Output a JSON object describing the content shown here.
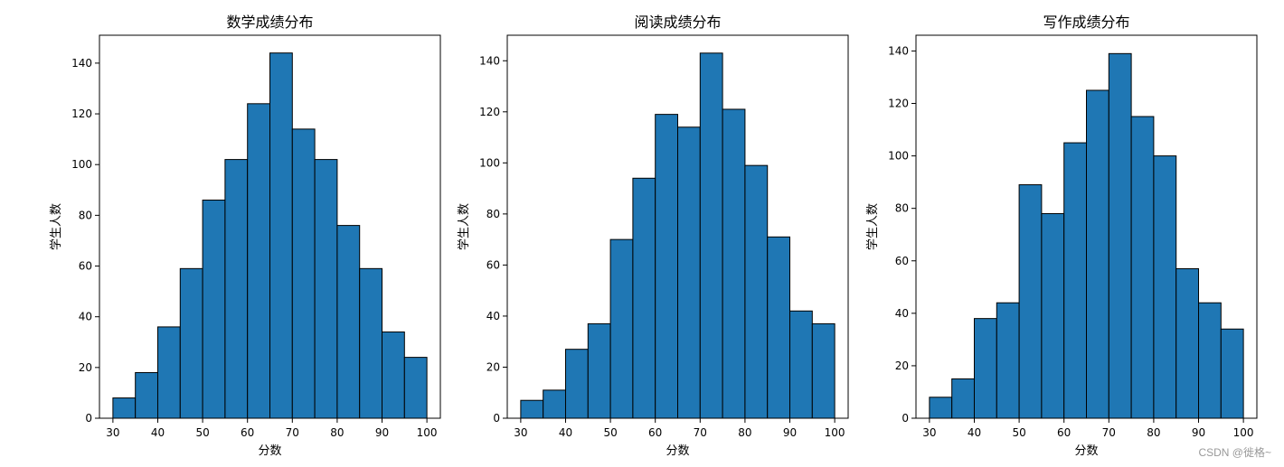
{
  "chart_data": [
    {
      "type": "bar",
      "title": "数学成绩分布",
      "xlabel": "分数",
      "ylabel": "学生人数",
      "categories": [
        "30-35",
        "35-40",
        "40-45",
        "45-50",
        "50-55",
        "55-60",
        "60-65",
        "65-70",
        "70-75",
        "75-80",
        "80-85",
        "85-90",
        "90-95",
        "95-100"
      ],
      "bin_edges": [
        30,
        35,
        40,
        45,
        50,
        55,
        60,
        65,
        70,
        75,
        80,
        85,
        90,
        95,
        100
      ],
      "values": [
        8,
        18,
        36,
        59,
        86,
        102,
        124,
        144,
        114,
        102,
        76,
        59,
        34,
        24
      ],
      "xlim": [
        27,
        103
      ],
      "ylim": [
        0,
        151
      ],
      "xticks": [
        "30",
        "40",
        "50",
        "60",
        "70",
        "80",
        "90",
        "100"
      ],
      "yticks": [
        "0",
        "20",
        "40",
        "60",
        "80",
        "100",
        "120",
        "140"
      ],
      "bar_color": "#1f77b4",
      "edge_color": "#000000",
      "grid": false,
      "legend": "none"
    },
    {
      "type": "bar",
      "title": "阅读成绩分布",
      "xlabel": "分数",
      "ylabel": "学生人数",
      "categories": [
        "30-35",
        "35-40",
        "40-45",
        "45-50",
        "50-55",
        "55-60",
        "60-65",
        "65-70",
        "70-75",
        "75-80",
        "80-85",
        "85-90",
        "90-95",
        "95-100"
      ],
      "bin_edges": [
        30,
        35,
        40,
        45,
        50,
        55,
        60,
        65,
        70,
        75,
        80,
        85,
        90,
        95,
        100
      ],
      "values": [
        7,
        11,
        27,
        37,
        70,
        94,
        119,
        114,
        143,
        121,
        99,
        71,
        42,
        37
      ],
      "xlim": [
        27,
        103
      ],
      "ylim": [
        0,
        150
      ],
      "xticks": [
        "30",
        "40",
        "50",
        "60",
        "70",
        "80",
        "90",
        "100"
      ],
      "yticks": [
        "0",
        "20",
        "40",
        "60",
        "80",
        "100",
        "120",
        "140"
      ],
      "bar_color": "#1f77b4",
      "edge_color": "#000000",
      "grid": false,
      "legend": "none"
    },
    {
      "type": "bar",
      "title": "写作成绩分布",
      "xlabel": "分数",
      "ylabel": "学生人数",
      "categories": [
        "30-35",
        "35-40",
        "40-45",
        "45-50",
        "50-55",
        "55-60",
        "60-65",
        "65-70",
        "70-75",
        "75-80",
        "80-85",
        "85-90",
        "90-95",
        "95-100"
      ],
      "bin_edges": [
        30,
        35,
        40,
        45,
        50,
        55,
        60,
        65,
        70,
        75,
        80,
        85,
        90,
        95,
        100
      ],
      "values": [
        8,
        15,
        38,
        44,
        89,
        78,
        105,
        125,
        139,
        115,
        100,
        57,
        44,
        34
      ],
      "xlim": [
        27,
        103
      ],
      "ylim": [
        0,
        146
      ],
      "xticks": [
        "30",
        "40",
        "50",
        "60",
        "70",
        "80",
        "90",
        "100"
      ],
      "yticks": [
        "0",
        "20",
        "40",
        "60",
        "80",
        "100",
        "120",
        "140"
      ],
      "bar_color": "#1f77b4",
      "edge_color": "#000000",
      "grid": false,
      "legend": "none"
    }
  ],
  "watermark": "CSDN @徙格~"
}
